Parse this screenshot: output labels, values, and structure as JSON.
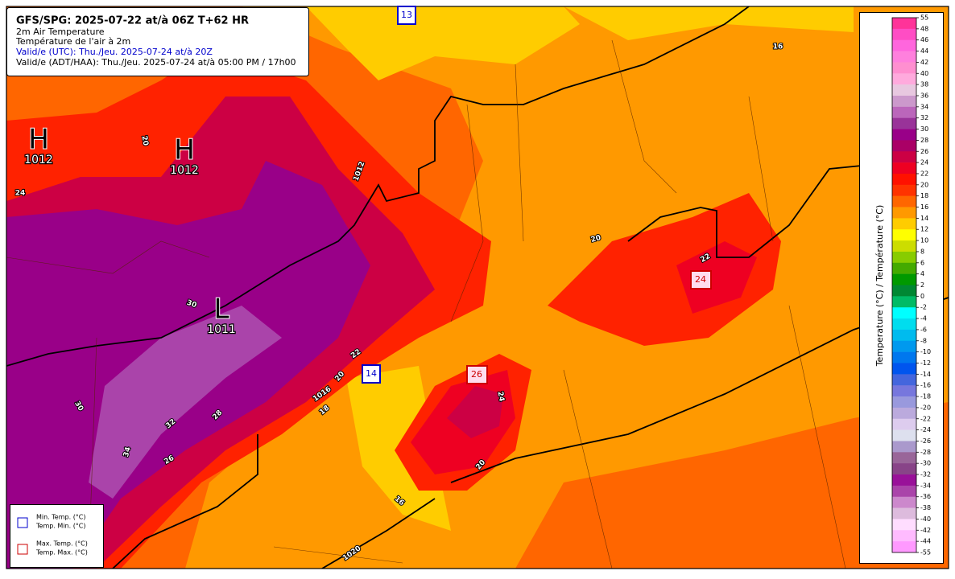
{
  "header": {
    "title": "GFS/SPG: 2025-07-22 at/à 06Z T+62 HR",
    "lines": [
      "2m Air Temperature",
      "Température de l'air à 2m",
      "Valid/e (UTC): Thu./Jeu. 2025-07-24 at/à 20Z",
      "Valid/e (ADT/HAA): Thu./Jeu. 2025-07-24 at/à 05:00 PM / 17h00"
    ]
  },
  "colorbar": {
    "label": "Temperature (°C) / Température (°C)",
    "ticks": [
      55,
      48,
      46,
      44,
      42,
      40,
      38,
      36,
      34,
      32,
      30,
      28,
      26,
      24,
      22,
      20,
      18,
      16,
      14,
      12,
      10,
      8,
      6,
      4,
      2,
      0,
      -2,
      -4,
      -6,
      -8,
      -10,
      -12,
      -14,
      -16,
      -18,
      -20,
      -22,
      -24,
      -26,
      -28,
      -30,
      -32,
      -34,
      -36,
      -38,
      -40,
      -42,
      -44,
      -55
    ],
    "colors": [
      "#ff3399",
      "#ff4dc4",
      "#ff66dd",
      "#ff80dd",
      "#ff8fd0",
      "#ffaadd",
      "#e8c8e0",
      "#cc99cc",
      "#bb66bb",
      "#993399",
      "#990088",
      "#aa0066",
      "#cc0044",
      "#ee0022",
      "#ff1100",
      "#ff3300",
      "#ff6600",
      "#ff9900",
      "#ffcc00",
      "#ffff00",
      "#ccdd00",
      "#88cc00",
      "#44aa00",
      "#009900",
      "#008833",
      "#00bb66",
      "#00ffff",
      "#00ddee",
      "#00bbee",
      "#0099ee",
      "#0077ee",
      "#0055ee",
      "#4466dd",
      "#7777dd",
      "#9999dd",
      "#bbaadd",
      "#ddccee",
      "#dde0ee",
      "#aa99cc",
      "#996699",
      "#884488",
      "#991199",
      "#aa44aa",
      "#cc88cc",
      "#ddbbdd",
      "#ffddff",
      "#ffbbff",
      "#ff99ff"
    ]
  },
  "pressure_centers": [
    {
      "letter": "H",
      "value": 1012
    },
    {
      "letter": "H",
      "value": 1012
    },
    {
      "letter": "L",
      "value": 1011
    }
  ],
  "stations": {
    "min": [
      13,
      14
    ],
    "max": [
      26,
      24
    ]
  },
  "contour_labels": [
    20,
    24,
    1012,
    16,
    20,
    22,
    30,
    22,
    20,
    1016,
    18,
    30,
    32,
    28,
    34,
    26,
    24,
    20,
    16,
    1020
  ],
  "legend": [
    {
      "line1": "Min. Temp. (°C)",
      "line2": "Temp. Min. (°C)"
    },
    {
      "line1": "Max. Temp. (°C)",
      "line2": "Temp. Max. (°C)"
    }
  ]
}
